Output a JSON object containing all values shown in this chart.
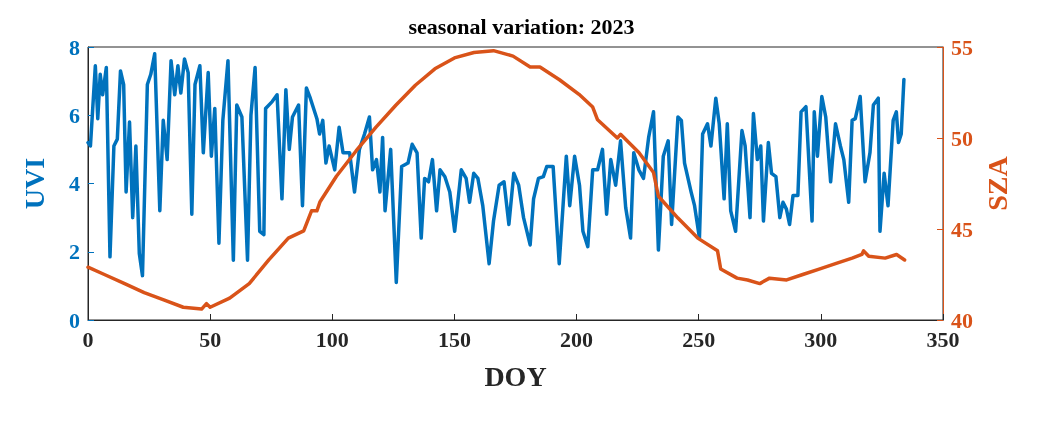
{
  "chart_data": {
    "type": "line",
    "title": "seasonal variation: 2023",
    "xlabel": "DOY",
    "ylabel": "UVI",
    "y2label": "SZA",
    "xlim": [
      0,
      350
    ],
    "xticks": [
      0,
      50,
      100,
      150,
      200,
      250,
      300,
      350
    ],
    "ylim": [
      0,
      8
    ],
    "yticks": [
      0,
      2,
      4,
      6,
      8
    ],
    "y2lim": [
      40,
      55
    ],
    "y2ticks": [
      40,
      45,
      50,
      55
    ],
    "grid": false,
    "marker": "none",
    "line_style": "solid",
    "series": [
      {
        "color": "#0072bd",
        "x": [
          0,
          1,
          3,
          4,
          5,
          6,
          7.5,
          9,
          10.6,
          12,
          13.3,
          14.6,
          15.6,
          17,
          18.3,
          19.6,
          21,
          22.3,
          24.3,
          25.7,
          27.3,
          29.4,
          30.8,
          32.4,
          34,
          35.5,
          36.8,
          38,
          39.5,
          41,
          42.5,
          43.8,
          45.8,
          47.2,
          49.2,
          50.5,
          51.9,
          53.6,
          55.2,
          57.3,
          59.5,
          60.9,
          63,
          65.3,
          66.7,
          68.4,
          70.3,
          72,
          72.7,
          75.4,
          77.4,
          79.4,
          81,
          82.4,
          83.7,
          86.2,
          87.8,
          89.4,
          91,
          93.7,
          94.8,
          96.1,
          97.4,
          98.7,
          101,
          102.8,
          104.4,
          107.1,
          109.1,
          111.1,
          113.2,
          115.2,
          116.5,
          118.1,
          119.5,
          120.6,
          121.6,
          123.9,
          126.2,
          128.4,
          131,
          132.7,
          134.7,
          136.4,
          137.8,
          139.4,
          141,
          142.7,
          144.1,
          146.1,
          148.1,
          150.1,
          152.8,
          154.8,
          156.2,
          157.9,
          159.6,
          161.6,
          164.2,
          166,
          168.3,
          170.3,
          172.3,
          174.3,
          176.3,
          178.3,
          181,
          182.4,
          184.4,
          186.4,
          187.8,
          190.4,
          192.9,
          195.8,
          197.2,
          199.2,
          201.2,
          202.6,
          204.6,
          206.6,
          208.6,
          210.6,
          212.3,
          214,
          216,
          218,
          220.1,
          222.1,
          223.4,
          225.5,
          227.4,
          229.5,
          231.5,
          233.5,
          235.5,
          237.5,
          238.9,
          241.5,
          242.9,
          244.2,
          246.9,
          248.3,
          250.3,
          251.6,
          253.6,
          255,
          257,
          258.4,
          260.4,
          261.7,
          263.1,
          265.1,
          267.7,
          269,
          271,
          272.4,
          274,
          275.4,
          276.5,
          278.5,
          279.8,
          281.6,
          283.2,
          284.5,
          285.9,
          287.2,
          288.6,
          290.6,
          291.9,
          293.9,
          296.4,
          297.3,
          298.6,
          300.4,
          302,
          304,
          306,
          308,
          309.4,
          311.4,
          312.8,
          314.1,
          316.1,
          318.1,
          320.1,
          321.5,
          323.5,
          324.2,
          325.9,
          327.5,
          329.6,
          330.9,
          331.8,
          332.9,
          334
        ],
        "values": [
          5.2,
          5.1,
          7.45,
          5.9,
          7.2,
          6.6,
          7.4,
          1.85,
          5.1,
          5.3,
          7.3,
          6.9,
          3.75,
          5.8,
          3.0,
          5.1,
          1.95,
          1.3,
          6.9,
          7.2,
          7.8,
          3.2,
          5.85,
          4.7,
          7.6,
          6.6,
          7.45,
          6.65,
          7.65,
          7.25,
          3.1,
          6.9,
          7.45,
          4.9,
          7.25,
          4.8,
          6.2,
          2.25,
          5.85,
          7.6,
          1.75,
          6.3,
          5.95,
          1.75,
          6.0,
          7.4,
          2.6,
          2.5,
          6.2,
          6.4,
          6.6,
          3.55,
          6.75,
          5.0,
          5.95,
          6.3,
          3.35,
          6.8,
          6.5,
          5.9,
          5.45,
          5.85,
          4.6,
          5.1,
          4.4,
          5.65,
          4.9,
          4.9,
          3.75,
          5.0,
          5.45,
          5.95,
          4.4,
          4.7,
          3.75,
          5.35,
          3.2,
          5.0,
          1.1,
          4.5,
          4.6,
          5.15,
          4.9,
          2.4,
          4.15,
          4.05,
          4.7,
          3.2,
          4.4,
          4.2,
          3.75,
          2.6,
          4.4,
          4.15,
          3.45,
          4.3,
          4.15,
          3.35,
          1.65,
          2.9,
          3.95,
          4.05,
          2.8,
          4.3,
          3.95,
          3.0,
          2.2,
          3.55,
          4.15,
          4.2,
          4.5,
          4.5,
          1.65,
          4.8,
          3.35,
          4.8,
          3.95,
          2.6,
          2.15,
          4.4,
          4.4,
          5.0,
          3.1,
          4.7,
          3.95,
          5.25,
          3.3,
          2.4,
          4.9,
          4.4,
          4.15,
          5.35,
          6.1,
          2.05,
          4.8,
          5.25,
          2.8,
          5.95,
          5.85,
          4.6,
          3.75,
          3.35,
          2.4,
          5.45,
          5.75,
          5.1,
          6.5,
          5.75,
          3.55,
          5.75,
          3.2,
          2.6,
          5.55,
          5.1,
          3.0,
          6.05,
          4.7,
          5.1,
          2.9,
          5.2,
          4.3,
          4.2,
          3.0,
          3.45,
          3.25,
          2.8,
          3.65,
          3.65,
          6.1,
          6.25,
          2.9,
          6.1,
          4.8,
          6.55,
          5.95,
          4.05,
          5.75,
          5.1,
          4.7,
          3.45,
          5.85,
          5.9,
          6.55,
          4.05,
          4.9,
          6.3,
          6.5,
          2.6,
          4.3,
          3.35,
          5.85,
          6.1,
          5.2,
          5.45,
          7.05
        ]
      },
      {
        "color": "#d95319",
        "axis": "y2",
        "x": [
          0,
          6.7,
          15,
          23,
          31,
          39,
          46.5,
          48.5,
          50,
          58,
          66,
          74,
          82,
          88.3,
          91.5,
          93.7,
          95,
          101.7,
          109.8,
          117.9,
          126,
          134,
          142,
          150,
          158,
          166,
          174,
          181,
          185,
          193,
          201,
          206.6,
          208.6,
          216.7,
          218,
          225.5,
          231.5,
          233.5,
          241.5,
          249.6,
          257.7,
          259,
          265.7,
          270,
          275,
          279,
          286,
          292.6,
          299.3,
          306,
          312.8,
          316.8,
          317.5,
          319.6,
          326.3,
          331,
          334.3
        ],
        "values": [
          42.9,
          42.5,
          42.0,
          41.5,
          41.1,
          40.7,
          40.6,
          40.9,
          40.7,
          41.2,
          42.0,
          43.3,
          44.5,
          44.9,
          46.0,
          46.0,
          46.5,
          47.9,
          49.3,
          50.6,
          51.8,
          52.9,
          53.8,
          54.4,
          54.7,
          54.8,
          54.5,
          53.9,
          53.9,
          53.2,
          52.4,
          51.7,
          51.0,
          50.0,
          50.2,
          49.2,
          48.1,
          46.8,
          45.6,
          44.5,
          43.8,
          42.8,
          42.3,
          42.2,
          42.0,
          42.3,
          42.2,
          42.5,
          42.8,
          43.1,
          43.4,
          43.6,
          43.8,
          43.5,
          43.4,
          43.6,
          43.3
        ]
      }
    ]
  }
}
